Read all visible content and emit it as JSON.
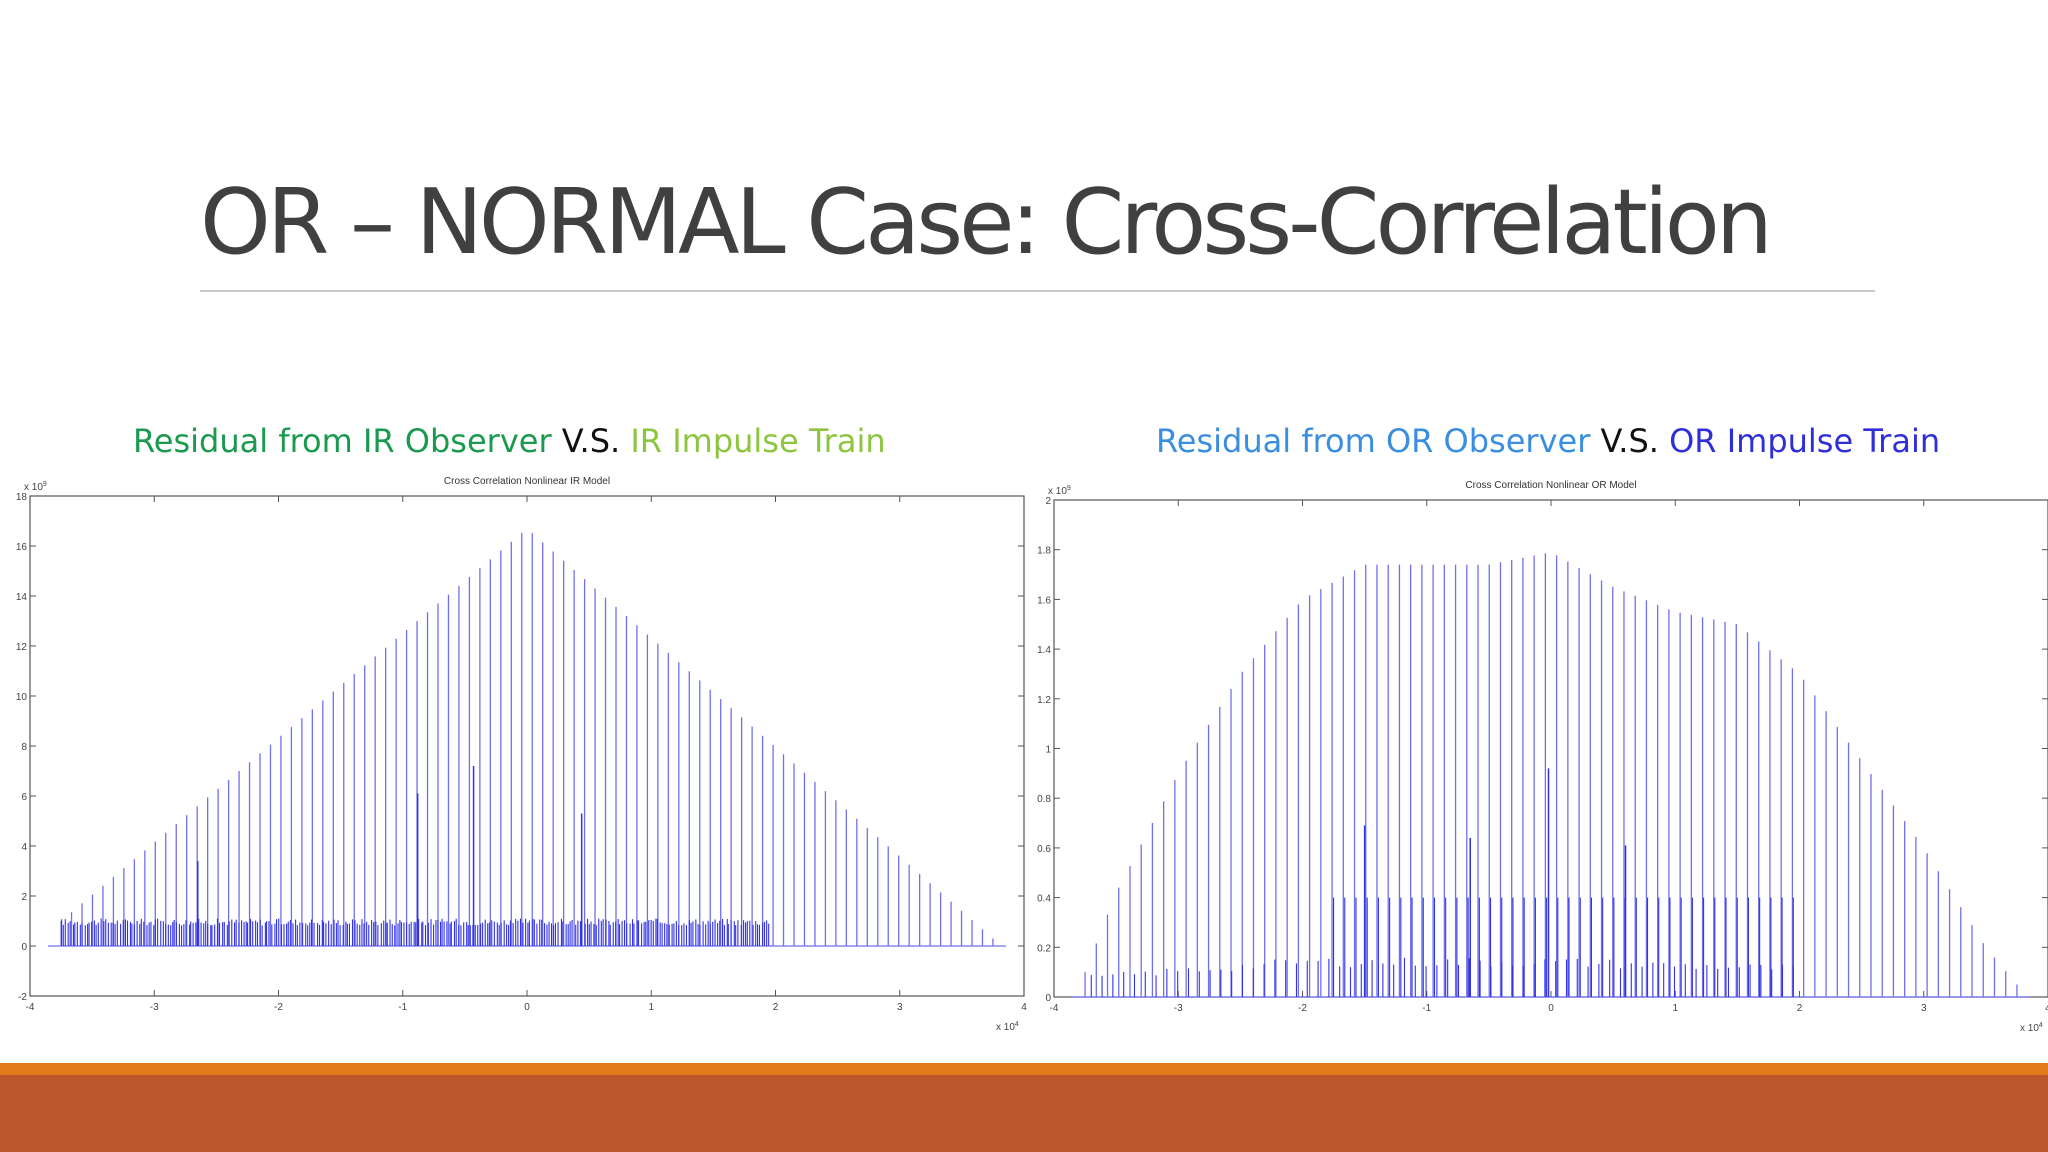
{
  "slide": {
    "title": "OR – NORMAL Case: Cross-Correlation"
  },
  "colors": {
    "title": "#404040",
    "green_dark": "#1a9a4e",
    "green_light": "#8cc63f",
    "blue_light": "#3a8ee0",
    "blue_dark": "#2f2fd9",
    "black": "#111111",
    "stem": "#7070ee",
    "stem_dense": "#3232e6",
    "accent_orange": "#e07a1a",
    "accent_rust": "#bd572b"
  },
  "captions": {
    "left": {
      "part1": "Residual from IR Observer",
      "part2": " V.S. ",
      "part3": "IR Impulse Train"
    },
    "right": {
      "part1": "Residual from OR Observer",
      "part2": " V.S. ",
      "part3": "OR Impulse Train"
    }
  },
  "chart_data": [
    {
      "type": "stem",
      "title": "Cross Correlation Nonlinear IR Model",
      "x_multiplier": "x 10^4",
      "y_multiplier": "x 10^9",
      "xlim": [
        -4,
        4
      ],
      "ylim": [
        -2,
        18
      ],
      "xticks": [
        -4,
        -3,
        -2,
        -1,
        0,
        1,
        2,
        3,
        4
      ],
      "yticks": [
        -2,
        0,
        2,
        4,
        6,
        8,
        10,
        12,
        14,
        16,
        18
      ],
      "grid": false,
      "series": [
        {
          "role": "main",
          "envelope_x": [
            -3.75,
            0,
            3.75
          ],
          "envelope_y": [
            1,
            16.7,
            0.3
          ],
          "stem_count": 90,
          "extra_stems": [
            {
              "x": -2.65,
              "y": 3.4
            },
            {
              "x": -0.88,
              "y": 6.1
            },
            {
              "x": -0.43,
              "y": 7.2
            },
            {
              "x": 0.44,
              "y": 5.3
            }
          ]
        },
        {
          "role": "dense",
          "x_range": [
            -3.75,
            1.95
          ],
          "level": 1.1,
          "stem_count": 300
        }
      ]
    },
    {
      "type": "stem",
      "title": "Cross Correlation Nonlinear OR Model",
      "x_multiplier": "x 10^4",
      "y_multiplier": "x 10^9",
      "xlim": [
        -4,
        4
      ],
      "ylim": [
        0,
        2
      ],
      "xticks": [
        -4,
        -3,
        -2,
        -1,
        0,
        1,
        2,
        3,
        4
      ],
      "yticks": [
        0,
        0.2,
        0.4,
        0.6,
        0.8,
        1,
        1.2,
        1.4,
        1.6,
        1.8,
        2
      ],
      "grid": false,
      "series": [
        {
          "role": "main",
          "envelope_x": [
            -3.75,
            -3.5,
            -3.0,
            -2.5,
            -2.0,
            -1.5,
            -1.0,
            -0.5,
            0.0,
            0.5,
            1.0,
            1.5,
            2.0,
            2.5,
            3.0,
            3.5,
            3.75
          ],
          "envelope_y": [
            0.1,
            0.42,
            0.9,
            1.3,
            1.6,
            1.74,
            1.74,
            1.74,
            1.79,
            1.65,
            1.55,
            1.5,
            1.3,
            0.95,
            0.6,
            0.2,
            0.05
          ],
          "stem_count": 84,
          "extra_stems": [
            {
              "x": -1.5,
              "y": 0.69
            },
            {
              "x": -0.65,
              "y": 0.64
            },
            {
              "x": -0.02,
              "y": 0.92
            },
            {
              "x": 0.6,
              "y": 0.61
            }
          ]
        },
        {
          "role": "mid",
          "x_range": [
            -1.75,
            1.95
          ],
          "level": 0.4,
          "stem_count": 42
        },
        {
          "role": "dense",
          "x_range": [
            -3.7,
            1.95
          ],
          "envelope_x": [
            -3.7,
            -2.0,
            0.0,
            1.95
          ],
          "envelope_y": [
            0.09,
            0.16,
            0.16,
            0.13
          ],
          "stem_count": 66
        }
      ]
    }
  ]
}
